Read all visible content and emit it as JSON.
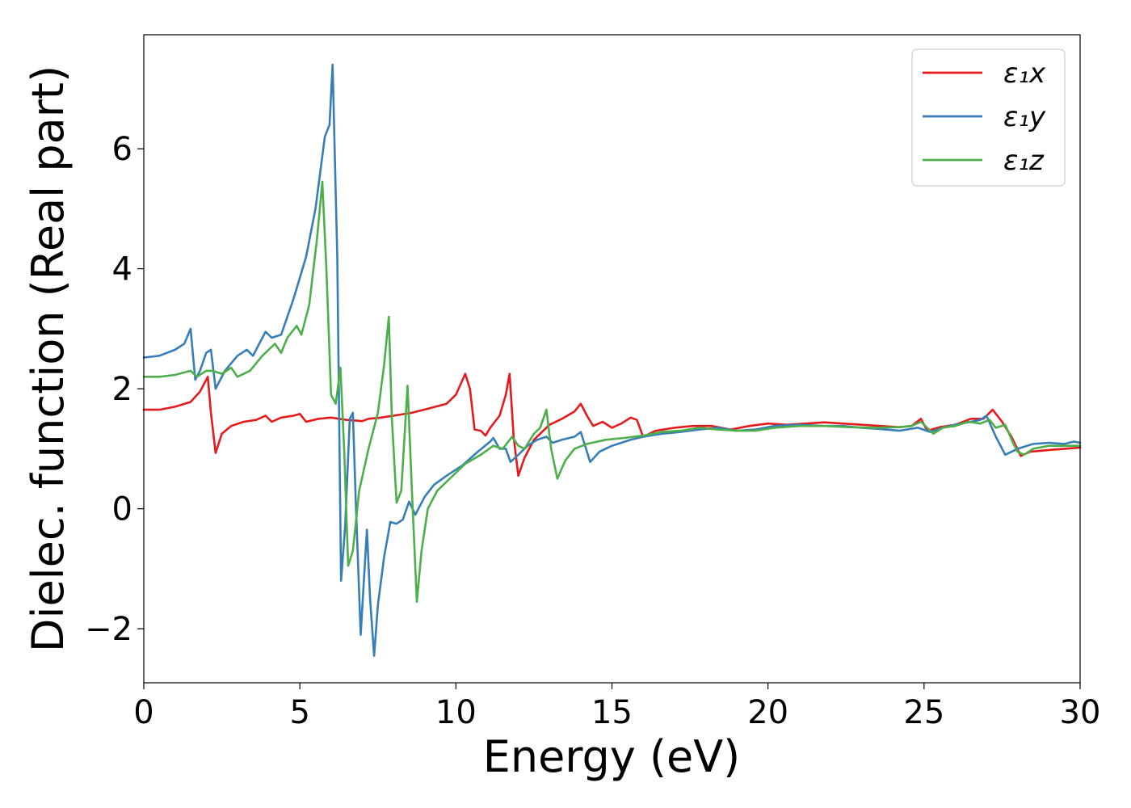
{
  "chart_data": {
    "type": "line",
    "xlabel": "Energy (eV)",
    "ylabel": "Dielec. function (Real part)",
    "xlim": [
      0,
      30
    ],
    "ylim": [
      -2.9,
      7.9
    ],
    "xticks": [
      0,
      5,
      10,
      15,
      20,
      25,
      30
    ],
    "xtick_labels": [
      "0",
      "5",
      "10",
      "15",
      "20",
      "25",
      "30"
    ],
    "yticks": [
      -2,
      0,
      2,
      4,
      6
    ],
    "ytick_labels": [
      "−2",
      "0",
      "2",
      "4",
      "6"
    ],
    "grid": false,
    "legend": {
      "placement": "top-right"
    },
    "series": [
      {
        "name": "ε₁x",
        "color": "#e41a1c",
        "points": [
          [
            0,
            1.65
          ],
          [
            0.5,
            1.65
          ],
          [
            1,
            1.7
          ],
          [
            1.5,
            1.78
          ],
          [
            1.8,
            1.95
          ],
          [
            2.05,
            2.2
          ],
          [
            2.15,
            1.6
          ],
          [
            2.3,
            0.93
          ],
          [
            2.5,
            1.25
          ],
          [
            2.8,
            1.38
          ],
          [
            3.2,
            1.45
          ],
          [
            3.6,
            1.48
          ],
          [
            3.9,
            1.55
          ],
          [
            4.1,
            1.45
          ],
          [
            4.4,
            1.52
          ],
          [
            4.8,
            1.55
          ],
          [
            5.0,
            1.58
          ],
          [
            5.2,
            1.45
          ],
          [
            5.6,
            1.5
          ],
          [
            6.0,
            1.52
          ],
          [
            6.5,
            1.48
          ],
          [
            7.0,
            1.46
          ],
          [
            7.2,
            1.5
          ],
          [
            7.6,
            1.52
          ],
          [
            8.0,
            1.55
          ],
          [
            8.6,
            1.6
          ],
          [
            9.2,
            1.68
          ],
          [
            9.7,
            1.75
          ],
          [
            10.0,
            1.9
          ],
          [
            10.3,
            2.25
          ],
          [
            10.45,
            2.0
          ],
          [
            10.6,
            1.32
          ],
          [
            10.8,
            1.3
          ],
          [
            10.95,
            1.22
          ],
          [
            11.1,
            1.35
          ],
          [
            11.4,
            1.55
          ],
          [
            11.6,
            1.9
          ],
          [
            11.72,
            2.25
          ],
          [
            11.85,
            1.2
          ],
          [
            12.0,
            0.55
          ],
          [
            12.2,
            0.85
          ],
          [
            12.5,
            1.15
          ],
          [
            12.8,
            1.3
          ],
          [
            13.0,
            1.4
          ],
          [
            13.4,
            1.5
          ],
          [
            13.8,
            1.62
          ],
          [
            14.0,
            1.75
          ],
          [
            14.2,
            1.55
          ],
          [
            14.4,
            1.38
          ],
          [
            14.7,
            1.45
          ],
          [
            15.0,
            1.35
          ],
          [
            15.3,
            1.42
          ],
          [
            15.6,
            1.52
          ],
          [
            15.8,
            1.48
          ],
          [
            16.0,
            1.2
          ],
          [
            16.4,
            1.3
          ],
          [
            17.0,
            1.35
          ],
          [
            17.6,
            1.38
          ],
          [
            18.2,
            1.38
          ],
          [
            18.8,
            1.32
          ],
          [
            19.4,
            1.38
          ],
          [
            20.0,
            1.42
          ],
          [
            20.6,
            1.4
          ],
          [
            21.2,
            1.42
          ],
          [
            21.8,
            1.44
          ],
          [
            22.4,
            1.42
          ],
          [
            23.0,
            1.4
          ],
          [
            23.6,
            1.38
          ],
          [
            24.2,
            1.36
          ],
          [
            24.6,
            1.38
          ],
          [
            24.9,
            1.5
          ],
          [
            25.1,
            1.3
          ],
          [
            25.5,
            1.36
          ],
          [
            26.0,
            1.4
          ],
          [
            26.5,
            1.5
          ],
          [
            26.9,
            1.5
          ],
          [
            27.2,
            1.65
          ],
          [
            27.5,
            1.45
          ],
          [
            27.8,
            1.2
          ],
          [
            28.1,
            0.88
          ],
          [
            28.4,
            0.95
          ],
          [
            29.0,
            0.98
          ],
          [
            29.5,
            1.0
          ],
          [
            30.0,
            1.02
          ]
        ]
      },
      {
        "name": "ε₁y",
        "color": "#377eb8",
        "points": [
          [
            0,
            2.52
          ],
          [
            0.5,
            2.55
          ],
          [
            1.0,
            2.65
          ],
          [
            1.3,
            2.75
          ],
          [
            1.5,
            3.0
          ],
          [
            1.65,
            2.15
          ],
          [
            1.8,
            2.3
          ],
          [
            2.0,
            2.6
          ],
          [
            2.15,
            2.65
          ],
          [
            2.3,
            2.0
          ],
          [
            2.6,
            2.3
          ],
          [
            3.0,
            2.55
          ],
          [
            3.3,
            2.65
          ],
          [
            3.5,
            2.55
          ],
          [
            3.7,
            2.75
          ],
          [
            3.9,
            2.95
          ],
          [
            4.1,
            2.85
          ],
          [
            4.4,
            2.9
          ],
          [
            4.8,
            3.5
          ],
          [
            5.2,
            4.2
          ],
          [
            5.5,
            5.0
          ],
          [
            5.8,
            6.2
          ],
          [
            5.95,
            6.4
          ],
          [
            6.05,
            7.4
          ],
          [
            6.2,
            4.2
          ],
          [
            6.32,
            -1.2
          ],
          [
            6.45,
            -0.3
          ],
          [
            6.6,
            1.5
          ],
          [
            6.7,
            1.6
          ],
          [
            6.8,
            0.0
          ],
          [
            6.95,
            -2.1
          ],
          [
            7.05,
            -1.2
          ],
          [
            7.15,
            -0.35
          ],
          [
            7.25,
            -1.5
          ],
          [
            7.38,
            -2.45
          ],
          [
            7.5,
            -1.6
          ],
          [
            7.7,
            -0.8
          ],
          [
            7.9,
            -0.22
          ],
          [
            8.1,
            -0.25
          ],
          [
            8.3,
            -0.18
          ],
          [
            8.5,
            0.12
          ],
          [
            8.7,
            -0.1
          ],
          [
            9.0,
            0.2
          ],
          [
            9.3,
            0.4
          ],
          [
            9.7,
            0.55
          ],
          [
            10.2,
            0.72
          ],
          [
            10.7,
            0.95
          ],
          [
            11.1,
            1.12
          ],
          [
            11.2,
            1.18
          ],
          [
            11.4,
            1.0
          ],
          [
            11.6,
            1.0
          ],
          [
            11.75,
            0.78
          ],
          [
            12.0,
            0.9
          ],
          [
            12.3,
            1.05
          ],
          [
            12.6,
            1.15
          ],
          [
            12.9,
            1.2
          ],
          [
            13.1,
            1.1
          ],
          [
            13.4,
            1.15
          ],
          [
            13.8,
            1.2
          ],
          [
            14.0,
            1.28
          ],
          [
            14.3,
            0.78
          ],
          [
            14.6,
            0.95
          ],
          [
            15.0,
            1.05
          ],
          [
            15.6,
            1.15
          ],
          [
            16.0,
            1.2
          ],
          [
            16.6,
            1.25
          ],
          [
            17.2,
            1.28
          ],
          [
            17.8,
            1.32
          ],
          [
            18.4,
            1.35
          ],
          [
            19.0,
            1.3
          ],
          [
            19.6,
            1.32
          ],
          [
            20.2,
            1.38
          ],
          [
            21.0,
            1.4
          ],
          [
            21.8,
            1.38
          ],
          [
            22.4,
            1.38
          ],
          [
            23.0,
            1.35
          ],
          [
            23.6,
            1.33
          ],
          [
            24.2,
            1.3
          ],
          [
            24.8,
            1.35
          ],
          [
            25.2,
            1.28
          ],
          [
            25.6,
            1.35
          ],
          [
            26.0,
            1.4
          ],
          [
            26.5,
            1.45
          ],
          [
            26.8,
            1.48
          ],
          [
            27.0,
            1.55
          ],
          [
            27.3,
            1.2
          ],
          [
            27.6,
            0.9
          ],
          [
            28.0,
            1.0
          ],
          [
            28.5,
            1.08
          ],
          [
            29.0,
            1.1
          ],
          [
            29.5,
            1.08
          ],
          [
            29.8,
            1.12
          ],
          [
            30.0,
            1.1
          ]
        ]
      },
      {
        "name": "ε₁z",
        "color": "#4daf4a",
        "points": [
          [
            0,
            2.2
          ],
          [
            0.5,
            2.2
          ],
          [
            1.0,
            2.23
          ],
          [
            1.5,
            2.3
          ],
          [
            1.7,
            2.2
          ],
          [
            2.0,
            2.3
          ],
          [
            2.2,
            2.3
          ],
          [
            2.5,
            2.25
          ],
          [
            2.8,
            2.35
          ],
          [
            3.0,
            2.2
          ],
          [
            3.4,
            2.3
          ],
          [
            3.8,
            2.55
          ],
          [
            4.2,
            2.75
          ],
          [
            4.4,
            2.6
          ],
          [
            4.6,
            2.85
          ],
          [
            4.9,
            3.05
          ],
          [
            5.05,
            2.9
          ],
          [
            5.3,
            3.4
          ],
          [
            5.55,
            4.5
          ],
          [
            5.72,
            5.45
          ],
          [
            5.85,
            4.0
          ],
          [
            6.0,
            1.9
          ],
          [
            6.15,
            1.75
          ],
          [
            6.3,
            2.35
          ],
          [
            6.42,
            1.0
          ],
          [
            6.55,
            -0.95
          ],
          [
            6.7,
            -0.7
          ],
          [
            6.9,
            0.3
          ],
          [
            7.2,
            1.0
          ],
          [
            7.5,
            1.6
          ],
          [
            7.7,
            2.4
          ],
          [
            7.85,
            3.2
          ],
          [
            7.95,
            1.5
          ],
          [
            8.1,
            0.1
          ],
          [
            8.25,
            0.3
          ],
          [
            8.45,
            2.05
          ],
          [
            8.6,
            0.2
          ],
          [
            8.75,
            -1.55
          ],
          [
            8.9,
            -0.7
          ],
          [
            9.1,
            0.0
          ],
          [
            9.4,
            0.3
          ],
          [
            9.8,
            0.5
          ],
          [
            10.3,
            0.75
          ],
          [
            10.8,
            0.9
          ],
          [
            11.2,
            1.05
          ],
          [
            11.5,
            1.0
          ],
          [
            11.8,
            1.2
          ],
          [
            12.0,
            1.05
          ],
          [
            12.2,
            1.0
          ],
          [
            12.5,
            1.25
          ],
          [
            12.7,
            1.35
          ],
          [
            12.9,
            1.65
          ],
          [
            13.05,
            1.0
          ],
          [
            13.25,
            0.5
          ],
          [
            13.5,
            0.8
          ],
          [
            13.8,
            1.0
          ],
          [
            14.2,
            1.08
          ],
          [
            14.8,
            1.15
          ],
          [
            15.4,
            1.18
          ],
          [
            16.0,
            1.22
          ],
          [
            16.6,
            1.28
          ],
          [
            17.2,
            1.3
          ],
          [
            17.8,
            1.35
          ],
          [
            18.4,
            1.32
          ],
          [
            19.0,
            1.3
          ],
          [
            19.6,
            1.3
          ],
          [
            20.2,
            1.35
          ],
          [
            21.0,
            1.38
          ],
          [
            21.8,
            1.38
          ],
          [
            22.6,
            1.36
          ],
          [
            23.4,
            1.35
          ],
          [
            24.2,
            1.36
          ],
          [
            24.6,
            1.38
          ],
          [
            24.9,
            1.45
          ],
          [
            25.3,
            1.25
          ],
          [
            25.6,
            1.35
          ],
          [
            26.0,
            1.38
          ],
          [
            26.4,
            1.45
          ],
          [
            26.8,
            1.42
          ],
          [
            27.1,
            1.48
          ],
          [
            27.3,
            1.35
          ],
          [
            27.6,
            1.4
          ],
          [
            27.85,
            1.1
          ],
          [
            28.0,
            0.95
          ],
          [
            28.2,
            0.9
          ],
          [
            28.5,
            1.0
          ],
          [
            29.0,
            1.05
          ],
          [
            29.5,
            1.05
          ],
          [
            30.0,
            1.05
          ]
        ]
      }
    ]
  }
}
